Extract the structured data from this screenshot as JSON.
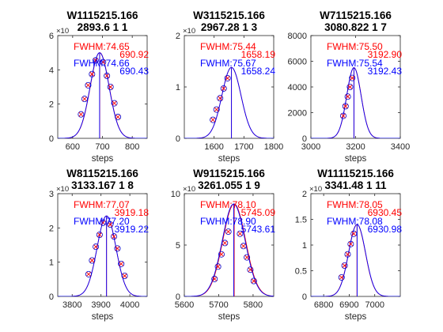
{
  "chart_data": [
    {
      "type": "line",
      "title": "W1115215.166",
      "subtitle": "2893.6 1 1",
      "xlabel": "steps",
      "xlim": [
        550,
        850
      ],
      "ylim": [
        0,
        6
      ],
      "y_exponent": "×10",
      "xticks": [
        600,
        700,
        800
      ],
      "yticks": [
        0,
        2,
        4,
        6
      ],
      "center": 690.92,
      "width": 74.65,
      "amplitude": 5.0,
      "marker_x": [
        628,
        640,
        652,
        665,
        677,
        702,
        715,
        727,
        740,
        752
      ],
      "marker_y": [
        1.4,
        2.3,
        3.1,
        3.75,
        4.55,
        4.45,
        3.65,
        3.0,
        2.05,
        1.25
      ],
      "vline_red": 690.92,
      "vline_blue": 690.43,
      "annotations": {
        "fwhm_red": "FWHM:74.65",
        "center_red": "690.92",
        "fwhm_blue": "FWHM:74.66",
        "center_blue": "690.43"
      }
    },
    {
      "type": "line",
      "title": "W3115215.166",
      "subtitle": "2967.28 1 3",
      "xlabel": "steps",
      "xlim": [
        1500,
        1800
      ],
      "ylim": [
        0,
        2
      ],
      "y_exponent": "×10",
      "xticks": [
        1600,
        1700,
        1800
      ],
      "yticks": [
        0,
        1,
        2
      ],
      "center": 1658.19,
      "width": 75.44,
      "amplitude": 1.38,
      "marker_x": [
        1596,
        1608,
        1620,
        1632,
        1645
      ],
      "marker_y": [
        0.36,
        0.56,
        0.78,
        0.97,
        1.17
      ],
      "vline_red": 1658.19,
      "vline_blue": 1658.24,
      "annotations": {
        "fwhm_red": "FWHM:75.44",
        "center_red": "1658.19",
        "fwhm_blue": "FWHM:75.67",
        "center_blue": "1658.24"
      }
    },
    {
      "type": "line",
      "title": "W7115215.166",
      "subtitle": "3080.822 1 7",
      "xlabel": "steps",
      "xlim": [
        3000,
        3400
      ],
      "ylim": [
        0,
        8000
      ],
      "xticks": [
        3000,
        3200,
        3400
      ],
      "yticks": [
        0,
        2000,
        4000,
        6000,
        8000
      ],
      "center": 3192.9,
      "width": 75.5,
      "amplitude": 5500,
      "marker_x": [
        3145,
        3155,
        3165,
        3175,
        3185
      ],
      "marker_y": [
        1750,
        2500,
        3250,
        4000,
        4700
      ],
      "vline_red": 3192.9,
      "vline_blue": 3192.43,
      "annotations": {
        "fwhm_red": "FWHM:75.50",
        "center_red": "3192.90",
        "fwhm_blue": "FWHM:75.54",
        "center_blue": "3192.43"
      }
    },
    {
      "type": "line",
      "title": "W8115215.166",
      "subtitle": "3133.167 1 8",
      "xlabel": "steps",
      "xlim": [
        3750,
        4060
      ],
      "ylim": [
        0,
        3
      ],
      "y_exponent": "×10",
      "xticks": [
        3800,
        3900,
        4000
      ],
      "yticks": [
        0,
        1,
        2,
        3
      ],
      "center": 3919.18,
      "width": 77.07,
      "amplitude": 2.35,
      "marker_x": [
        3857,
        3869,
        3882,
        3895,
        3907,
        3932,
        3945,
        3957,
        3970,
        3982
      ],
      "marker_y": [
        0.65,
        1.05,
        1.45,
        1.8,
        2.15,
        2.1,
        1.75,
        1.4,
        0.95,
        0.6
      ],
      "vline_red": 3919.18,
      "vline_blue": 3919.22,
      "annotations": {
        "fwhm_red": "FWHM:77.07",
        "center_red": "3919.18",
        "fwhm_blue": "FWHM:77.20",
        "center_blue": "3919.22"
      }
    },
    {
      "type": "line",
      "title": "W9115215.166",
      "subtitle": "3261.055 1 9",
      "xlabel": "steps",
      "xlim": [
        5600,
        5860
      ],
      "ylim": [
        0,
        10
      ],
      "y_exponent": "×10",
      "xticks": [
        5600,
        5700,
        5800
      ],
      "yticks": [
        0,
        5,
        10
      ],
      "center": 5745.09,
      "width": 78.1,
      "amplitude": 9.0,
      "marker_x": [
        5688,
        5698,
        5708,
        5718,
        5728,
        5762,
        5772,
        5782,
        5792,
        5802
      ],
      "marker_y": [
        1.7,
        2.9,
        4.1,
        5.2,
        6.3,
        6.1,
        4.9,
        3.8,
        2.6,
        1.5
      ],
      "vline_red": 5745.09,
      "vline_blue": 5743.61,
      "annotations": {
        "fwhm_red": "FWHM:78.10",
        "center_red": "5745.09",
        "fwhm_blue": "FWHM:78.90",
        "center_blue": "5743.61"
      }
    },
    {
      "type": "line",
      "title": "W11115215.166",
      "subtitle": "3341.48 1 11",
      "xlabel": "steps",
      "xlim": [
        6750,
        7100
      ],
      "ylim": [
        0,
        2
      ],
      "y_exponent": "×10",
      "xticks": [
        6800,
        6900,
        7000
      ],
      "yticks": [
        0,
        0.5,
        1,
        1.5,
        2
      ],
      "center": 6930.45,
      "width": 78.05,
      "amplitude": 1.4,
      "marker_x": [
        6870,
        6882,
        6894,
        6906,
        6918
      ],
      "marker_y": [
        0.37,
        0.6,
        0.82,
        1.02,
        1.22
      ],
      "vline_red": 6930.45,
      "vline_blue": 6930.98,
      "annotations": {
        "fwhm_red": "FWHM:78.05",
        "center_red": "6930.45",
        "fwhm_blue": "FWHM:78.08",
        "center_blue": "6930.98"
      }
    }
  ],
  "colors": {
    "red": "#ff0000",
    "blue": "#0000ff",
    "axis": "#262626",
    "marker_fill": "#ff0000",
    "marker_edge": "#0000cc"
  }
}
